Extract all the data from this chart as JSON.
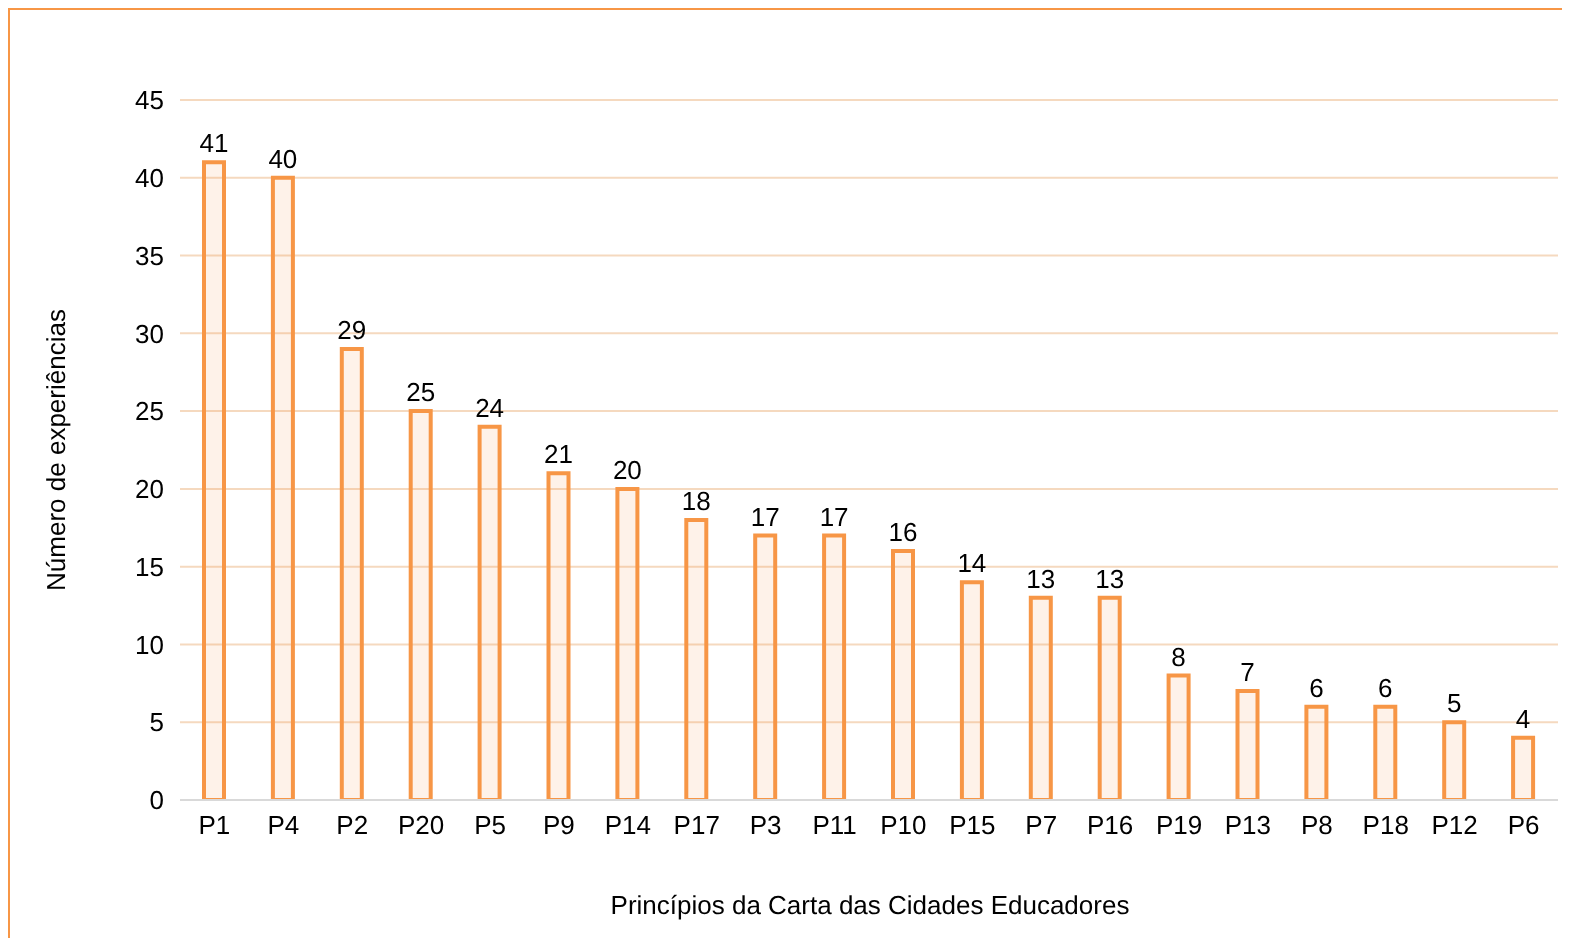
{
  "chart_data": {
    "type": "bar",
    "xlabel": "Princípios da Carta das Cidades Educadores",
    "ylabel": "Número de experiências",
    "categories": [
      "P1",
      "P4",
      "P2",
      "P20",
      "P5",
      "P9",
      "P14",
      "P17",
      "P3",
      "P11",
      "P10",
      "P15",
      "P7",
      "P16",
      "P19",
      "P13",
      "P8",
      "P18",
      "P12",
      "P6"
    ],
    "values": [
      41,
      40,
      29,
      25,
      24,
      21,
      20,
      18,
      17,
      17,
      16,
      14,
      13,
      13,
      8,
      7,
      6,
      6,
      5,
      4
    ],
    "color": "#f79646",
    "ylim": [
      0,
      45
    ],
    "yticks": [
      0,
      5,
      10,
      15,
      20,
      25,
      30,
      35,
      40,
      45
    ],
    "grid": "y",
    "data_labels": true
  }
}
